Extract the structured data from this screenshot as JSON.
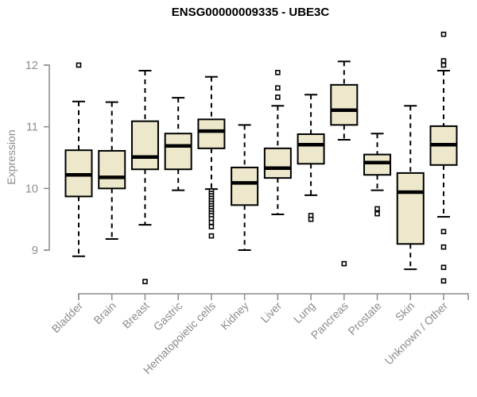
{
  "chart_data": {
    "type": "boxplot",
    "title": "ENSG00000009335 - UBE3C",
    "ylabel": "Expression",
    "xlabel": "",
    "yticks": [
      9,
      10,
      11,
      12
    ],
    "ylim": [
      8.4,
      12.6
    ],
    "grid": false,
    "legend": "none",
    "categories": [
      "Bladder",
      "Brain",
      "Breast",
      "Gastric",
      "Hematopoietic cells",
      "Kidney",
      "Liver",
      "Lung",
      "Pancreas",
      "Prostate",
      "Skin",
      "Unknown / Other"
    ],
    "series": [
      {
        "name": "Bladder",
        "low": 8.9,
        "q1": 9.87,
        "median": 10.22,
        "q3": 10.62,
        "high": 11.41,
        "outliers": [
          12.0
        ]
      },
      {
        "name": "Brain",
        "low": 9.18,
        "q1": 10.0,
        "median": 10.18,
        "q3": 10.61,
        "high": 11.4,
        "outliers": []
      },
      {
        "name": "Breast",
        "low": 9.41,
        "q1": 10.31,
        "median": 10.51,
        "q3": 11.09,
        "high": 11.91,
        "outliers": [
          8.49
        ]
      },
      {
        "name": "Gastric",
        "low": 9.97,
        "q1": 10.31,
        "median": 10.69,
        "q3": 10.89,
        "high": 11.47,
        "outliers": []
      },
      {
        "name": "Hematopoietic cells",
        "low": 9.99,
        "q1": 10.65,
        "median": 10.93,
        "q3": 11.12,
        "high": 11.81,
        "outliers": [
          9.96,
          9.92,
          9.88,
          9.84,
          9.8,
          9.76,
          9.72,
          9.68,
          9.64,
          9.6,
          9.56,
          9.51,
          9.45,
          9.38,
          9.23
        ]
      },
      {
        "name": "Kidney",
        "low": 9.0,
        "q1": 9.73,
        "median": 10.09,
        "q3": 10.34,
        "high": 11.03,
        "outliers": []
      },
      {
        "name": "Liver",
        "low": 9.58,
        "q1": 10.17,
        "median": 10.33,
        "q3": 10.65,
        "high": 11.34,
        "outliers": [
          11.88,
          11.63,
          11.48
        ]
      },
      {
        "name": "Lung",
        "low": 9.89,
        "q1": 10.4,
        "median": 10.71,
        "q3": 10.88,
        "high": 11.52,
        "outliers": [
          9.56,
          9.5
        ]
      },
      {
        "name": "Pancreas",
        "low": 10.79,
        "q1": 11.03,
        "median": 11.27,
        "q3": 11.68,
        "high": 12.06,
        "outliers": [
          8.78
        ]
      },
      {
        "name": "Prostate",
        "low": 9.97,
        "q1": 10.22,
        "median": 10.42,
        "q3": 10.55,
        "high": 10.89,
        "outliers": [
          9.67,
          9.59
        ]
      },
      {
        "name": "Skin",
        "low": 8.69,
        "q1": 9.1,
        "median": 9.94,
        "q3": 10.25,
        "high": 11.34,
        "outliers": []
      },
      {
        "name": "Unknown / Other",
        "low": 9.54,
        "q1": 10.38,
        "median": 10.71,
        "q3": 11.01,
        "high": 11.91,
        "outliers": [
          12.5,
          12.07,
          12.0,
          9.3,
          9.05,
          8.72,
          8.5
        ]
      }
    ]
  },
  "colors": {
    "box_fill": "#EDE8CC",
    "box_border": "#000000",
    "median": "#000000",
    "whisker": "#000000",
    "outlier_stroke": "#000000",
    "outlier_fill": "#ffffff",
    "axis": "#8c8c8c",
    "tick_text": "#8c8c8c",
    "title_text": "#000000"
  }
}
